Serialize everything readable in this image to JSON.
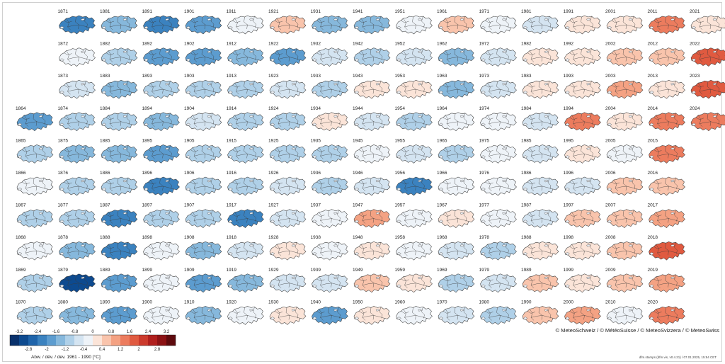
{
  "chart_data": {
    "type": "heatmap",
    "description_units": "Abw. / dév. / dev. 1961 - 1990 [°C]",
    "colorbar": {
      "label": "Abw. / dév. / dev. 1961 - 1990 [°C]",
      "ticks_top": [
        "-3.2",
        "-2.4",
        "-1.6",
        "-0.8",
        "0",
        "0.8",
        "1.6",
        "2.4",
        "3.2"
      ],
      "ticks_bottom": [
        "-2.8",
        "-2",
        "-1.2",
        "-0.4",
        "0.4",
        "1.2",
        "2",
        "2.8"
      ],
      "colors": [
        "#08306b",
        "#0d4a8f",
        "#1f64aa",
        "#3b82bf",
        "#5c9ccf",
        "#86b8dc",
        "#afd0e8",
        "#d4e4f1",
        "#eef3f8",
        "#fbe4d8",
        "#f9c4ac",
        "#f4a283",
        "#ec7c5e",
        "#e05a40",
        "#cc3a2c",
        "#b01f1d",
        "#8c1214",
        "#5e0a0d"
      ]
    },
    "color_scale": {
      "min": -3.2,
      "max": 3.2,
      "step": 0.4
    },
    "years": [
      {
        "year": "1864",
        "value": -1.6
      },
      {
        "year": "1865",
        "value": -0.8
      },
      {
        "year": "1866",
        "value": 0.2
      },
      {
        "year": "1867",
        "value": -0.6
      },
      {
        "year": "1868",
        "value": 0.1
      },
      {
        "year": "1869",
        "value": -0.5
      },
      {
        "year": "1870",
        "value": -0.8
      },
      {
        "year": "1871",
        "value": -1.9
      },
      {
        "year": "1872",
        "value": 0.2
      },
      {
        "year": "1873",
        "value": -0.4
      },
      {
        "year": "1874",
        "value": -0.8
      },
      {
        "year": "1875",
        "value": -1.0
      },
      {
        "year": "1876",
        "value": -0.8
      },
      {
        "year": "1877",
        "value": -0.8
      },
      {
        "year": "1878",
        "value": -0.9
      },
      {
        "year": "1879",
        "value": -2.6
      },
      {
        "year": "1880",
        "value": -1.1
      },
      {
        "year": "1881",
        "value": -1.0
      },
      {
        "year": "1882",
        "value": -0.6
      },
      {
        "year": "1883",
        "value": -1.2
      },
      {
        "year": "1884",
        "value": -0.6
      },
      {
        "year": "1885",
        "value": -1.0
      },
      {
        "year": "1886",
        "value": -0.8
      },
      {
        "year": "1887",
        "value": -1.9
      },
      {
        "year": "1888",
        "value": -2.0
      },
      {
        "year": "1889",
        "value": -1.3
      },
      {
        "year": "1890",
        "value": -1.4
      },
      {
        "year": "1891",
        "value": -1.9
      },
      {
        "year": "1892",
        "value": -1.3
      },
      {
        "year": "1893",
        "value": -0.6
      },
      {
        "year": "1894",
        "value": -1.0
      },
      {
        "year": "1895",
        "value": -1.3
      },
      {
        "year": "1896",
        "value": -1.8
      },
      {
        "year": "1897",
        "value": -0.7
      },
      {
        "year": "1898",
        "value": 0.1
      },
      {
        "year": "1899",
        "value": 0.0
      },
      {
        "year": "1900",
        "value": 0.3
      },
      {
        "year": "1901",
        "value": -1.6
      },
      {
        "year": "1902",
        "value": -1.3
      },
      {
        "year": "1903",
        "value": -0.8
      },
      {
        "year": "1904",
        "value": -0.3
      },
      {
        "year": "1905",
        "value": -0.8
      },
      {
        "year": "1906",
        "value": -0.6
      },
      {
        "year": "1907",
        "value": -0.5
      },
      {
        "year": "1908",
        "value": -1.2
      },
      {
        "year": "1909",
        "value": -1.6
      },
      {
        "year": "1910",
        "value": -1.0
      },
      {
        "year": "1911",
        "value": 0.3
      },
      {
        "year": "1912",
        "value": -1.0
      },
      {
        "year": "1913",
        "value": -0.5
      },
      {
        "year": "1914",
        "value": -0.7
      },
      {
        "year": "1915",
        "value": -0.7
      },
      {
        "year": "1916",
        "value": -0.6
      },
      {
        "year": "1917",
        "value": -1.8
      },
      {
        "year": "1918",
        "value": -0.3
      },
      {
        "year": "1919",
        "value": -1.1
      },
      {
        "year": "1920",
        "value": 0.3
      },
      {
        "year": "1921",
        "value": 1.0
      },
      {
        "year": "1922",
        "value": -1.3
      },
      {
        "year": "1923",
        "value": -0.4
      },
      {
        "year": "1924",
        "value": -0.8
      },
      {
        "year": "1925",
        "value": -0.5
      },
      {
        "year": "1926",
        "value": -0.1
      },
      {
        "year": "1927",
        "value": -0.3
      },
      {
        "year": "1928",
        "value": 0.5
      },
      {
        "year": "1929",
        "value": -0.3
      },
      {
        "year": "1930",
        "value": 0.4
      },
      {
        "year": "1931",
        "value": -1.1
      },
      {
        "year": "1932",
        "value": -0.2
      },
      {
        "year": "1933",
        "value": -0.7
      },
      {
        "year": "1934",
        "value": 0.6
      },
      {
        "year": "1935",
        "value": -0.5
      },
      {
        "year": "1936",
        "value": -0.6
      },
      {
        "year": "1937",
        "value": 0.0
      },
      {
        "year": "1938",
        "value": 0.0
      },
      {
        "year": "1939",
        "value": -0.4
      },
      {
        "year": "1940",
        "value": -1.5
      },
      {
        "year": "1941",
        "value": -1.0
      },
      {
        "year": "1942",
        "value": -0.6
      },
      {
        "year": "1943",
        "value": 0.7
      },
      {
        "year": "1944",
        "value": -0.4
      },
      {
        "year": "1945",
        "value": 0.3
      },
      {
        "year": "1946",
        "value": -0.2
      },
      {
        "year": "1947",
        "value": 1.2
      },
      {
        "year": "1948",
        "value": 0.7
      },
      {
        "year": "1949",
        "value": 0.8
      },
      {
        "year": "1950",
        "value": 0.7
      },
      {
        "year": "1951",
        "value": 0.2
      },
      {
        "year": "1952",
        "value": -0.3
      },
      {
        "year": "1953",
        "value": 0.4
      },
      {
        "year": "1954",
        "value": -0.8
      },
      {
        "year": "1955",
        "value": -0.4
      },
      {
        "year": "1956",
        "value": -1.8
      },
      {
        "year": "1957",
        "value": 0.1
      },
      {
        "year": "1958",
        "value": 0.0
      },
      {
        "year": "1959",
        "value": 0.5
      },
      {
        "year": "1960",
        "value": 0.0
      },
      {
        "year": "1961",
        "value": 0.9
      },
      {
        "year": "1962",
        "value": -1.0
      },
      {
        "year": "1963",
        "value": -0.9
      },
      {
        "year": "1964",
        "value": 0.2
      },
      {
        "year": "1965",
        "value": -0.8
      },
      {
        "year": "1966",
        "value": 0.3
      },
      {
        "year": "1967",
        "value": 0.4
      },
      {
        "year": "1968",
        "value": -0.3
      },
      {
        "year": "1969",
        "value": -0.6
      },
      {
        "year": "1970",
        "value": -0.4
      },
      {
        "year": "1971",
        "value": 0.0
      },
      {
        "year": "1972",
        "value": -0.3
      },
      {
        "year": "1973",
        "value": -0.3
      },
      {
        "year": "1974",
        "value": 0.1
      },
      {
        "year": "1975",
        "value": 0.1
      },
      {
        "year": "1976",
        "value": 0.2
      },
      {
        "year": "1977",
        "value": 0.1
      },
      {
        "year": "1978",
        "value": -0.5
      },
      {
        "year": "1979",
        "value": -0.2
      },
      {
        "year": "1980",
        "value": -0.6
      },
      {
        "year": "1981",
        "value": -0.1
      },
      {
        "year": "1982",
        "value": 0.6
      },
      {
        "year": "1983",
        "value": 0.6
      },
      {
        "year": "1984",
        "value": -0.4
      },
      {
        "year": "1985",
        "value": -0.4
      },
      {
        "year": "1986",
        "value": -0.3
      },
      {
        "year": "1987",
        "value": -0.3
      },
      {
        "year": "1988",
        "value": 0.7
      },
      {
        "year": "1989",
        "value": 1.1
      },
      {
        "year": "1990",
        "value": 1.0
      },
      {
        "year": "1991",
        "value": 0.4
      },
      {
        "year": "1992",
        "value": 0.7
      },
      {
        "year": "1993",
        "value": 0.5
      },
      {
        "year": "1994",
        "value": 1.6
      },
      {
        "year": "1995",
        "value": 0.6
      },
      {
        "year": "1996",
        "value": -0.1
      },
      {
        "year": "1997",
        "value": 0.8
      },
      {
        "year": "1998",
        "value": 0.7
      },
      {
        "year": "1999",
        "value": 0.7
      },
      {
        "year": "2000",
        "value": 1.3
      },
      {
        "year": "2001",
        "value": 0.6
      },
      {
        "year": "2002",
        "value": 1.0
      },
      {
        "year": "2003",
        "value": 1.5
      },
      {
        "year": "2004",
        "value": 0.7
      },
      {
        "year": "2005",
        "value": 0.3
      },
      {
        "year": "2006",
        "value": 1.1
      },
      {
        "year": "2007",
        "value": 1.1
      },
      {
        "year": "2008",
        "value": 0.8
      },
      {
        "year": "2009",
        "value": 1.1
      },
      {
        "year": "2010",
        "value": 0.2
      },
      {
        "year": "2011",
        "value": 1.7
      },
      {
        "year": "2012",
        "value": 1.1
      },
      {
        "year": "2013",
        "value": 0.5
      },
      {
        "year": "2014",
        "value": 1.6
      },
      {
        "year": "2015",
        "value": 1.7
      },
      {
        "year": "2016",
        "value": 1.0
      },
      {
        "year": "2017",
        "value": 1.3
      },
      {
        "year": "2018",
        "value": 2.0
      },
      {
        "year": "2019",
        "value": 1.5
      },
      {
        "year": "2020",
        "value": 1.9
      },
      {
        "year": "2021",
        "value": 0.6
      },
      {
        "year": "2022",
        "value": 2.4
      },
      {
        "year": "2023",
        "value": 2.3
      },
      {
        "year": "2024",
        "value": 1.9
      }
    ]
  },
  "footer": {
    "copyright": "© MeteoSchweiz / © MétéoSuisse / © MeteoSvizzera / © MeteoSwiss",
    "stamp": "dfm.stamps (dfm.vis, v0.4.21) / 07.01.2025, 15:54 CET"
  }
}
